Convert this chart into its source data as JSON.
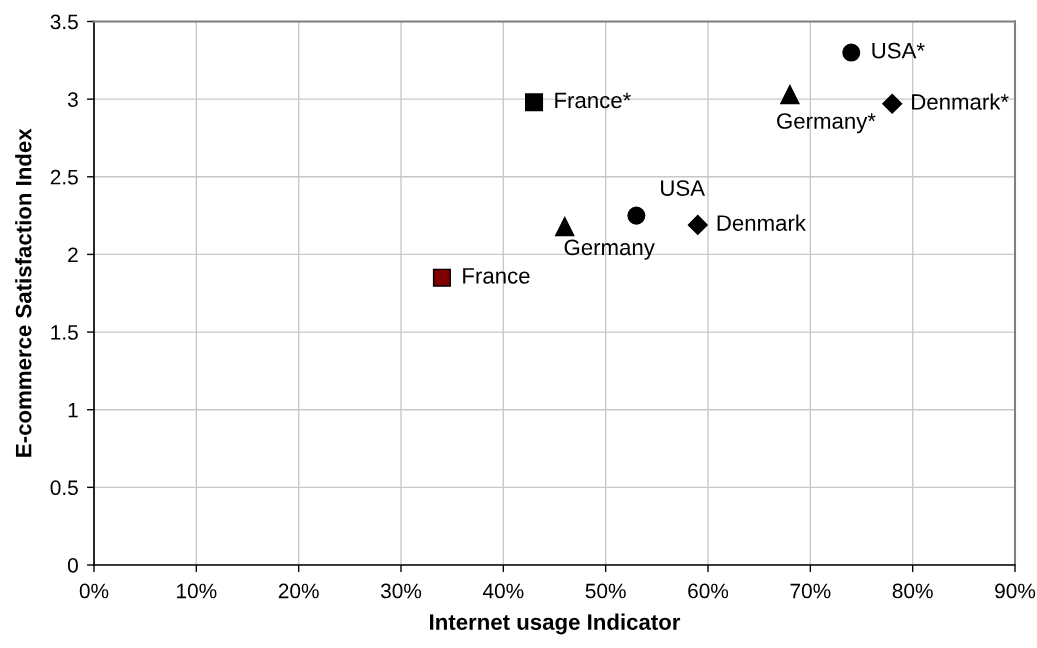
{
  "chart_data": {
    "type": "scatter",
    "xlabel": "Internet usage Indicator",
    "ylabel": "E-commerce Satisfaction Index",
    "xlim": [
      0,
      90
    ],
    "xticks": [
      {
        "value": 0,
        "label": "0%"
      },
      {
        "value": 10,
        "label": "10%"
      },
      {
        "value": 20,
        "label": "20%"
      },
      {
        "value": 30,
        "label": "30%"
      },
      {
        "value": 40,
        "label": "40%"
      },
      {
        "value": 50,
        "label": "50%"
      },
      {
        "value": 60,
        "label": "60%"
      },
      {
        "value": 70,
        "label": "70%"
      },
      {
        "value": 80,
        "label": "80%"
      },
      {
        "value": 90,
        "label": "90%"
      }
    ],
    "ylim": [
      0,
      3.5
    ],
    "yticks": [
      0,
      0.5,
      1,
      1.5,
      2,
      2.5,
      3,
      3.5
    ],
    "grid": true,
    "series": [
      {
        "name": "France",
        "color": "#800000",
        "marker": "square",
        "x": [
          34
        ],
        "values": [
          1.85
        ]
      },
      {
        "name": "Germany",
        "color": "#000000",
        "marker": "triangle",
        "x": [
          46
        ],
        "values": [
          2.18
        ]
      },
      {
        "name": "USA",
        "color": "#000000",
        "marker": "circle",
        "x": [
          53
        ],
        "values": [
          2.25
        ]
      },
      {
        "name": "Denmark",
        "color": "#000000",
        "marker": "diamond",
        "x": [
          59
        ],
        "values": [
          2.19
        ]
      },
      {
        "name": "France*",
        "color": "#000000",
        "marker": "square",
        "x": [
          43
        ],
        "values": [
          2.98
        ]
      },
      {
        "name": "Germany*",
        "color": "#000000",
        "marker": "triangle",
        "x": [
          68
        ],
        "values": [
          3.03
        ]
      },
      {
        "name": "USA*",
        "color": "#000000",
        "marker": "circle",
        "x": [
          74
        ],
        "values": [
          3.3
        ]
      },
      {
        "name": "Denmark*",
        "color": "#000000",
        "marker": "diamond",
        "x": [
          78
        ],
        "values": [
          2.97
        ]
      }
    ]
  }
}
